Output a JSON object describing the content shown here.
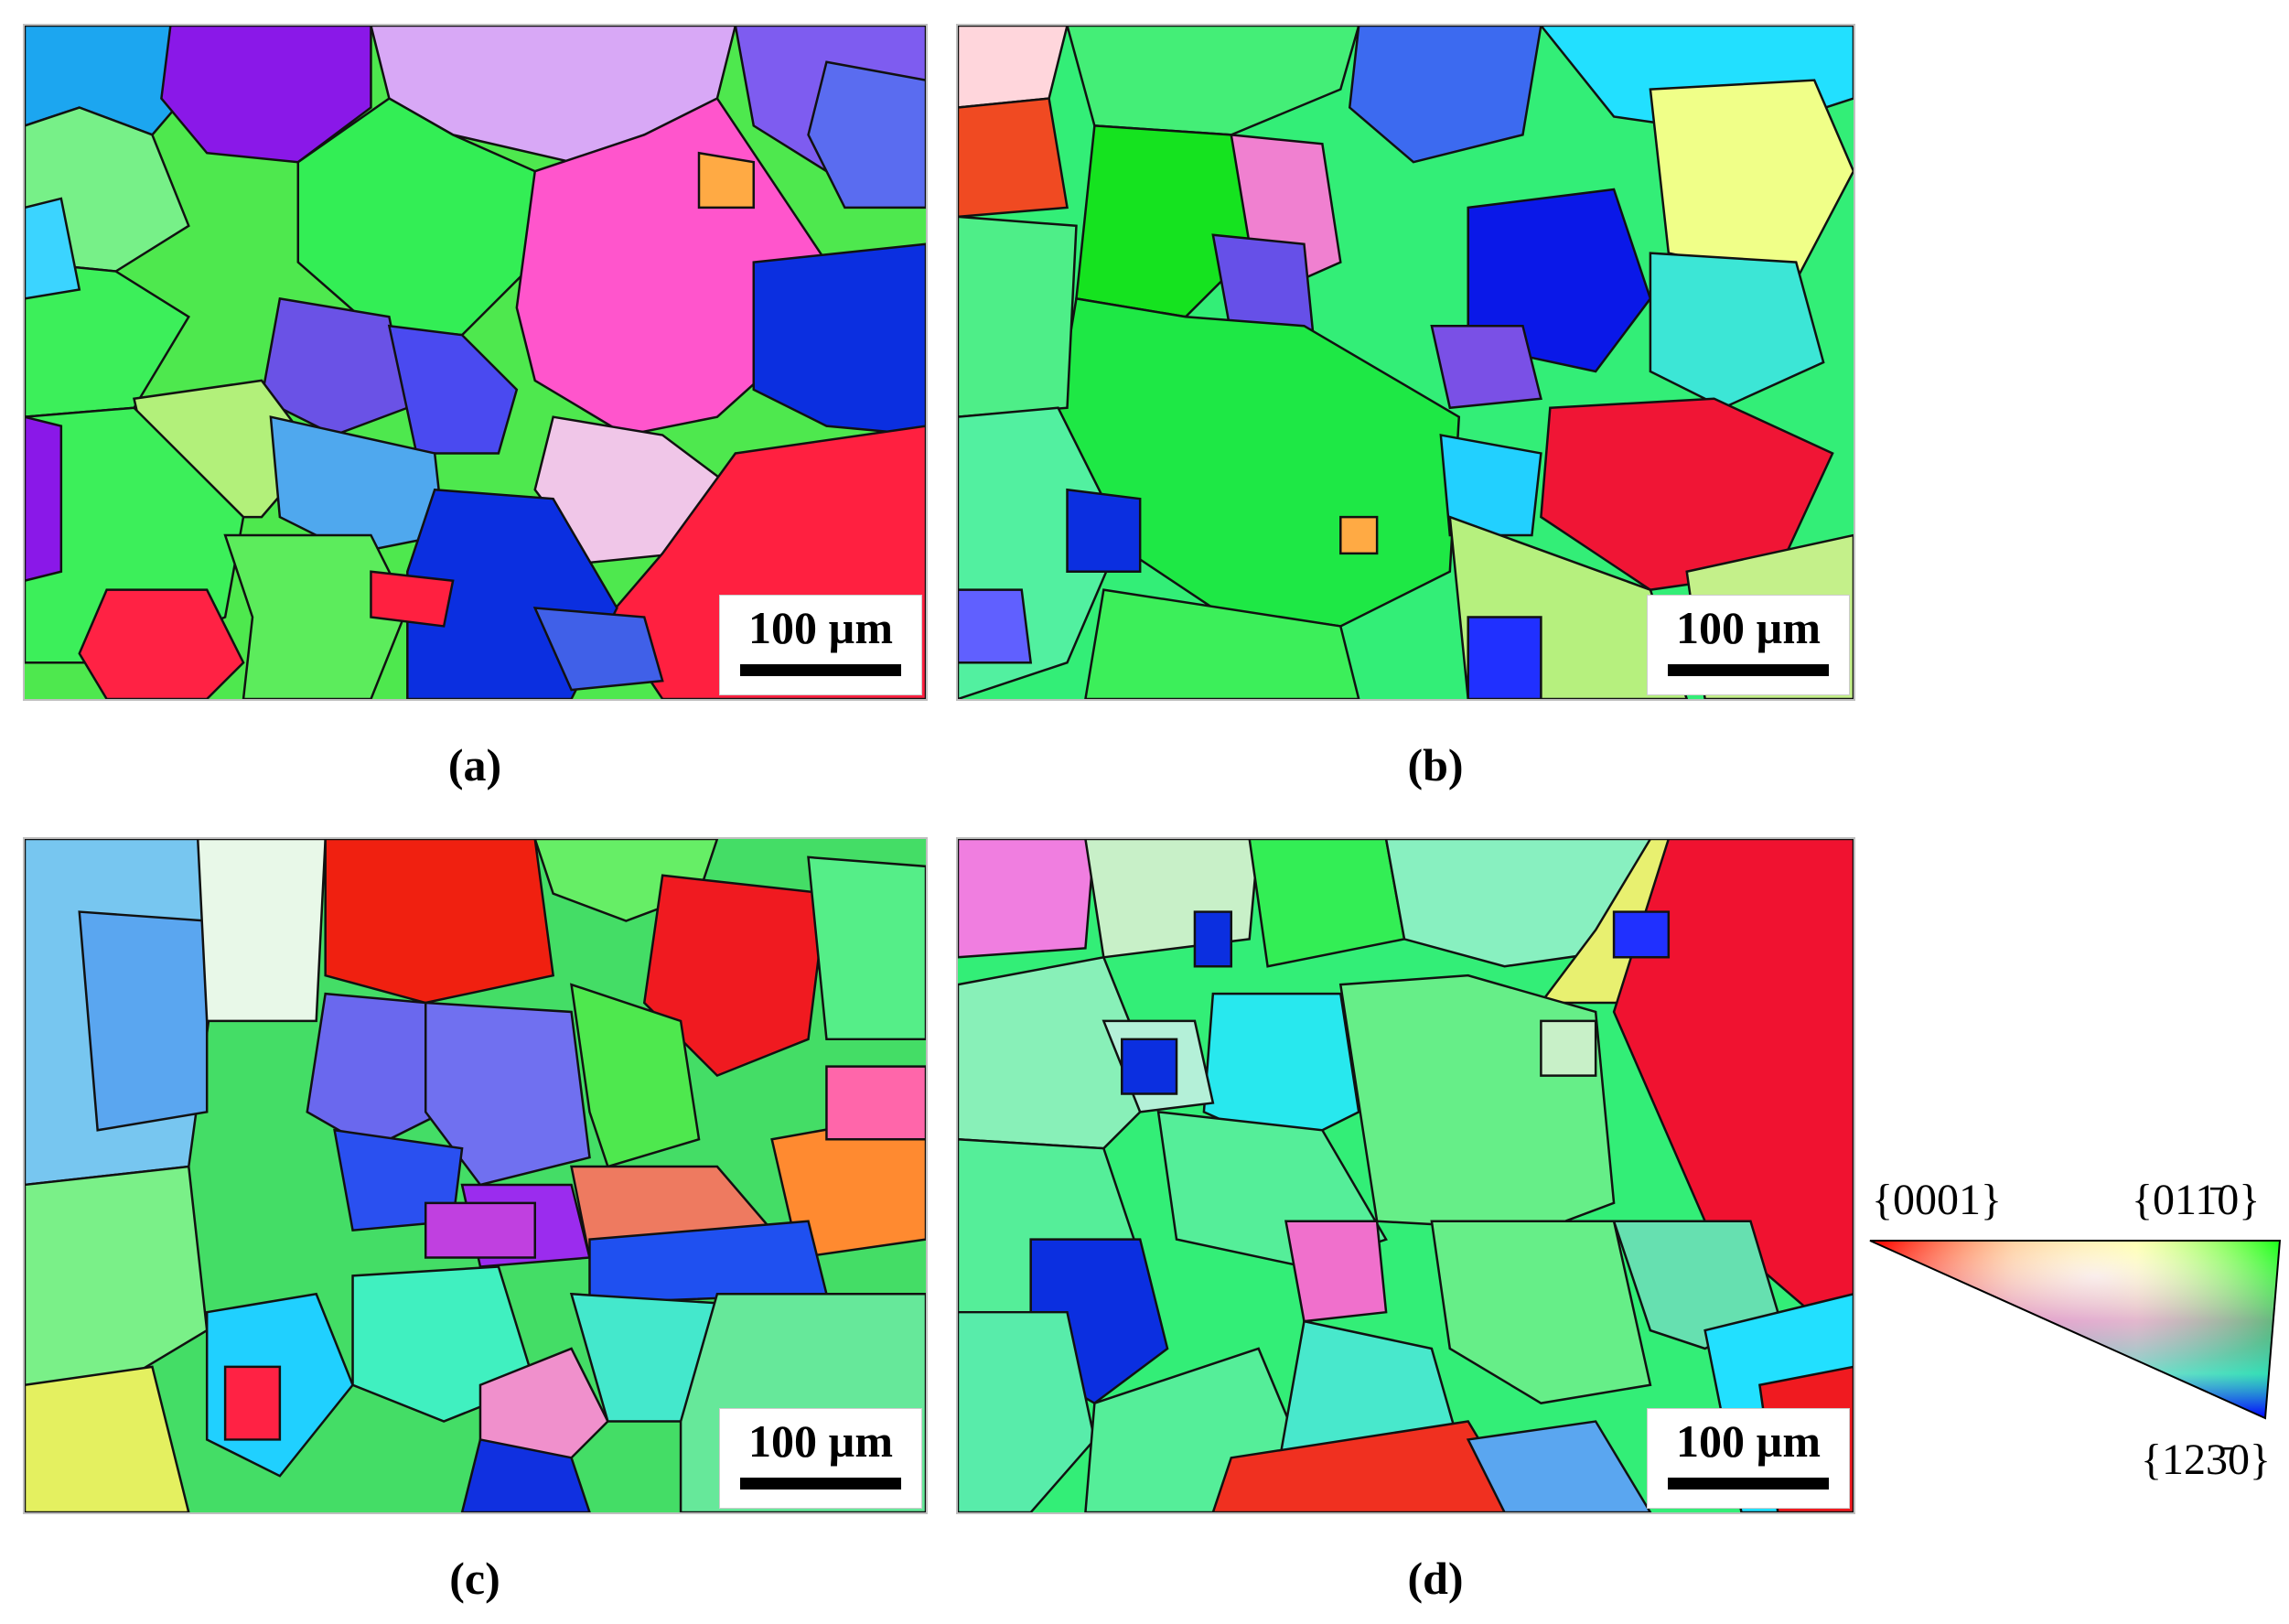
{
  "panels": [
    {
      "id": "a",
      "label": "(a)",
      "scale_label": "100 µm"
    },
    {
      "id": "b",
      "label": "(b)",
      "scale_label": "100 µm"
    },
    {
      "id": "c",
      "label": "(c)",
      "scale_label": "100 µm"
    },
    {
      "id": "d",
      "label": "(d)",
      "scale_label": "100 µm"
    }
  ],
  "color_key": {
    "corner_0001": "{0001}",
    "corner_01_10": "{011̄0}",
    "corner_12_30": "{123̄0}",
    "colors": {
      "basal": "#ff0000",
      "prism_01_10": "#00ff00",
      "prism_12_30": "#0000ff"
    }
  },
  "grain_palette": [
    "#4ee84e",
    "#33ee55",
    "#8a2be2",
    "#ff55cc",
    "#0b2fe0",
    "#ff2040",
    "#47a0ee",
    "#77ffdd",
    "#e0a0ff",
    "#ffff88",
    "#22e0ff",
    "#6060ff",
    "#f05030",
    "#a0ffa0",
    "#ffb040"
  ]
}
